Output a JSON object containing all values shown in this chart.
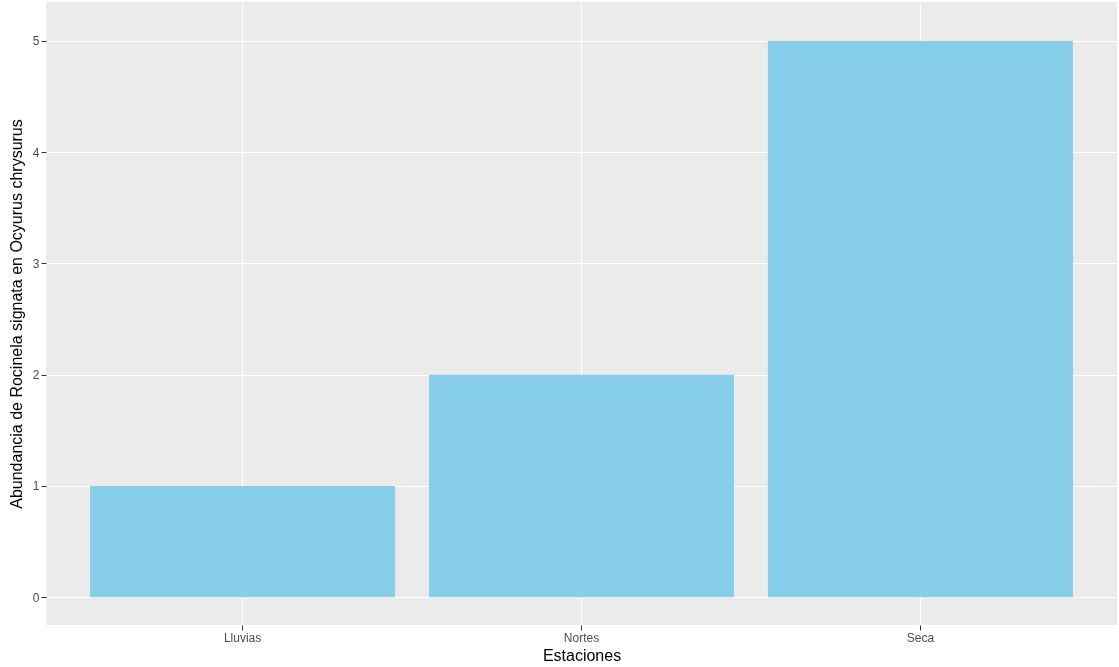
{
  "chart_data": {
    "type": "bar",
    "xlabel": "Estaciones",
    "ylabel": "Abundancia de Rocinela signata en Ocyurus chrysurus",
    "categories": [
      "Lluvias",
      "Nortes",
      "Seca"
    ],
    "series": [
      {
        "color": "#87ceeb",
        "values": [
          1,
          2,
          5
        ]
      }
    ],
    "ylim": [
      -0.25,
      5.35
    ],
    "yticks": [
      0,
      1,
      2,
      3,
      4,
      5
    ],
    "grid": true
  }
}
